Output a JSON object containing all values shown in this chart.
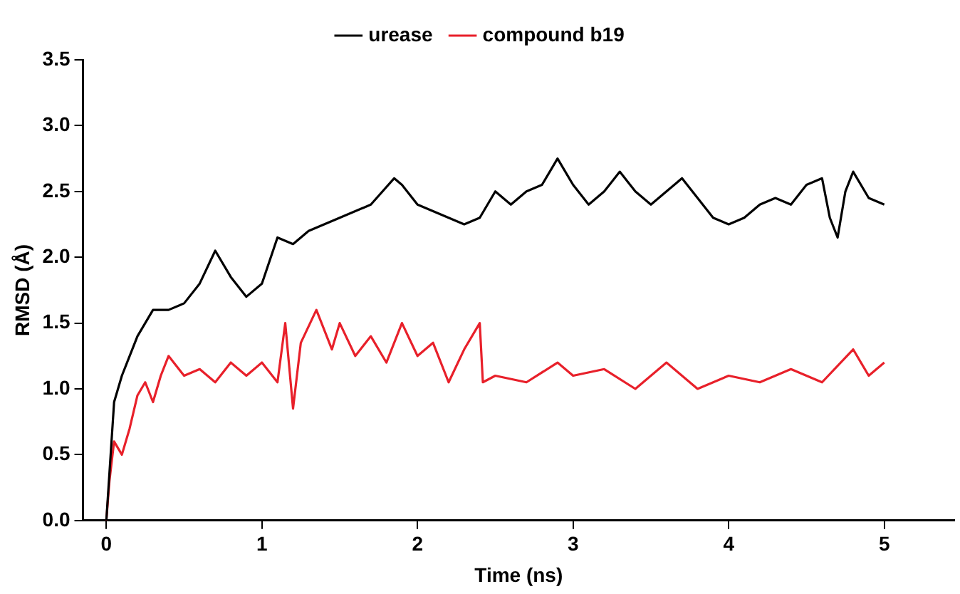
{
  "chart_data": {
    "type": "line",
    "xlabel": "Time (ns)",
    "ylabel": "RMSD (Å)",
    "xlim": [
      -0.15,
      5.45
    ],
    "xticks": [
      0,
      1,
      2,
      3,
      4,
      5
    ],
    "ylim": [
      0,
      3.5
    ],
    "yticks": [
      {
        "value": 0,
        "label": "0.0"
      },
      {
        "value": 0.5,
        "label": "0.5"
      },
      {
        "value": 1,
        "label": "1.0"
      },
      {
        "value": 1.5,
        "label": "1.5"
      },
      {
        "value": 2,
        "label": "2.0"
      },
      {
        "value": 2.5,
        "label": "2.5"
      },
      {
        "value": 3,
        "label": "3.0"
      },
      {
        "value": 3.5,
        "label": "3.5"
      }
    ],
    "grid": false,
    "legend": "top",
    "marker": "none",
    "line_style": "solid",
    "series": [
      {
        "name": "urease",
        "color": "#000000",
        "x": [
          0,
          0.05,
          0.1,
          0.2,
          0.3,
          0.4,
          0.5,
          0.6,
          0.7,
          0.8,
          0.9,
          1.0,
          1.1,
          1.2,
          1.3,
          1.5,
          1.7,
          1.85,
          1.9,
          2.0,
          2.2,
          2.3,
          2.4,
          2.5,
          2.6,
          2.7,
          2.8,
          2.9,
          3.0,
          3.1,
          3.2,
          3.3,
          3.4,
          3.5,
          3.6,
          3.7,
          3.8,
          3.9,
          4.0,
          4.1,
          4.2,
          4.3,
          4.4,
          4.5,
          4.6,
          4.65,
          4.7,
          4.75,
          4.8,
          4.9,
          5.0
        ],
        "values": [
          0,
          0.9,
          1.1,
          1.4,
          1.6,
          1.6,
          1.65,
          1.8,
          2.05,
          1.85,
          1.7,
          1.8,
          2.15,
          2.1,
          2.2,
          2.3,
          2.4,
          2.6,
          2.55,
          2.4,
          2.3,
          2.25,
          2.3,
          2.5,
          2.4,
          2.5,
          2.55,
          2.75,
          2.55,
          2.4,
          2.5,
          2.65,
          2.5,
          2.4,
          2.5,
          2.6,
          2.45,
          2.3,
          2.25,
          2.3,
          2.4,
          2.45,
          2.4,
          2.55,
          2.6,
          2.3,
          2.15,
          2.5,
          2.65,
          2.45,
          2.4
        ]
      },
      {
        "name": "compound b19",
        "color": "#e8202a",
        "x": [
          0,
          0.02,
          0.05,
          0.1,
          0.15,
          0.2,
          0.25,
          0.3,
          0.35,
          0.4,
          0.5,
          0.6,
          0.7,
          0.8,
          0.9,
          1.0,
          1.1,
          1.15,
          1.2,
          1.25,
          1.35,
          1.45,
          1.5,
          1.6,
          1.7,
          1.8,
          1.9,
          2.0,
          2.1,
          2.2,
          2.3,
          2.4,
          2.42,
          2.5,
          2.7,
          2.9,
          3.0,
          3.2,
          3.4,
          3.6,
          3.8,
          4.0,
          4.2,
          4.4,
          4.6,
          4.8,
          4.9,
          5.0
        ],
        "values": [
          0,
          0.3,
          0.6,
          0.5,
          0.7,
          0.95,
          1.05,
          0.9,
          1.1,
          1.25,
          1.1,
          1.15,
          1.05,
          1.2,
          1.1,
          1.2,
          1.05,
          1.5,
          0.85,
          1.35,
          1.6,
          1.3,
          1.5,
          1.25,
          1.4,
          1.2,
          1.5,
          1.25,
          1.35,
          1.05,
          1.3,
          1.5,
          1.05,
          1.1,
          1.05,
          1.2,
          1.1,
          1.15,
          1.0,
          1.2,
          1.0,
          1.1,
          1.05,
          1.15,
          1.05,
          1.3,
          1.1,
          1.2
        ]
      }
    ]
  }
}
